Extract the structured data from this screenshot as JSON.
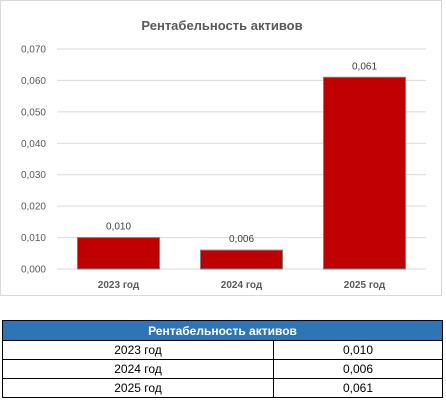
{
  "chart_data": {
    "type": "bar",
    "title": "Рентабельность активов",
    "categories": [
      "2023 год",
      "2024 год",
      "2025 год"
    ],
    "values": [
      0.01,
      0.006,
      0.061
    ],
    "value_labels": [
      "0,010",
      "0,006",
      "0,061"
    ],
    "ylim": [
      0,
      0.07
    ],
    "yticks": [
      "0,000",
      "0,010",
      "0,020",
      "0,030",
      "0,040",
      "0,050",
      "0,060",
      "0,070"
    ],
    "grid": true,
    "legend": "none",
    "bar_color": "#c00000"
  },
  "table": {
    "header": "Рентабельность активов",
    "rows": [
      {
        "label": "2023 год",
        "value": "0,010"
      },
      {
        "label": "2024 год",
        "value": "0,006"
      },
      {
        "label": "2025 год",
        "value": "0,061"
      }
    ]
  }
}
